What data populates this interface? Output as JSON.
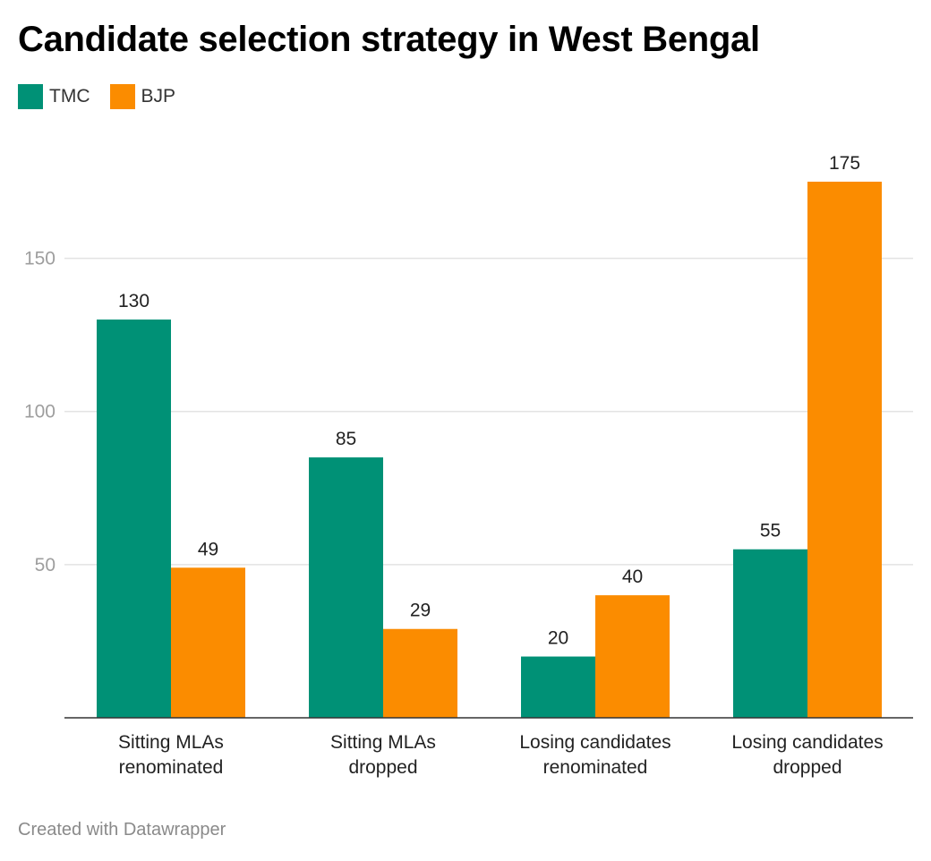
{
  "title": "Candidate selection strategy in West Bengal",
  "footer": "Created with Datawrapper",
  "legend": [
    {
      "name": "TMC",
      "color": "#009176"
    },
    {
      "name": "BJP",
      "color": "#fb8c00"
    }
  ],
  "chart_data": {
    "type": "bar",
    "categories": [
      [
        "Sitting MLAs",
        "renominated"
      ],
      [
        "Sitting MLAs",
        "dropped"
      ],
      [
        "Losing candidates",
        "renominated"
      ],
      [
        "Losing candidates",
        "dropped"
      ]
    ],
    "series": [
      {
        "name": "TMC",
        "color": "#009176",
        "values": [
          130,
          85,
          20,
          55
        ]
      },
      {
        "name": "BJP",
        "color": "#fb8c00",
        "values": [
          49,
          29,
          40,
          175
        ]
      }
    ],
    "yticks": [
      50,
      100,
      150
    ],
    "ylim": [
      0,
      175
    ],
    "grid": true,
    "legend_position": "top-left",
    "value_labels": true
  }
}
